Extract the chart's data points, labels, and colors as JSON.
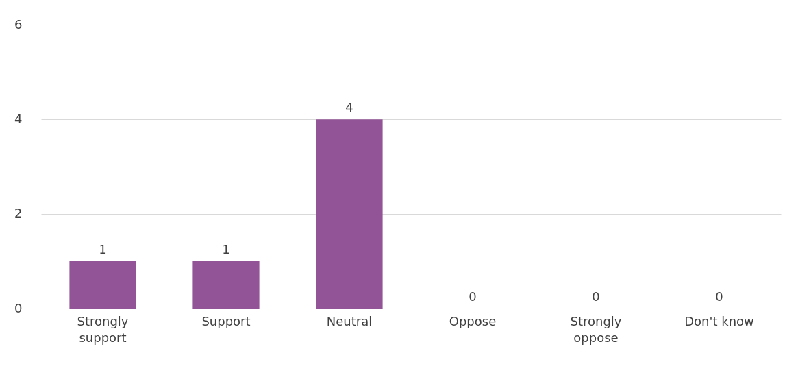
{
  "chart_data": {
    "type": "bar",
    "categories": [
      "Strongly\nsupport",
      "Support",
      "Neutral",
      "Oppose",
      "Strongly\noppose",
      "Don't know"
    ],
    "values": [
      1,
      1,
      4,
      0,
      0,
      0
    ],
    "color": "#925496",
    "ylim": [
      0,
      6
    ],
    "yticks": [
      0,
      2,
      4,
      6
    ],
    "grid": "y",
    "data_labels": true
  }
}
